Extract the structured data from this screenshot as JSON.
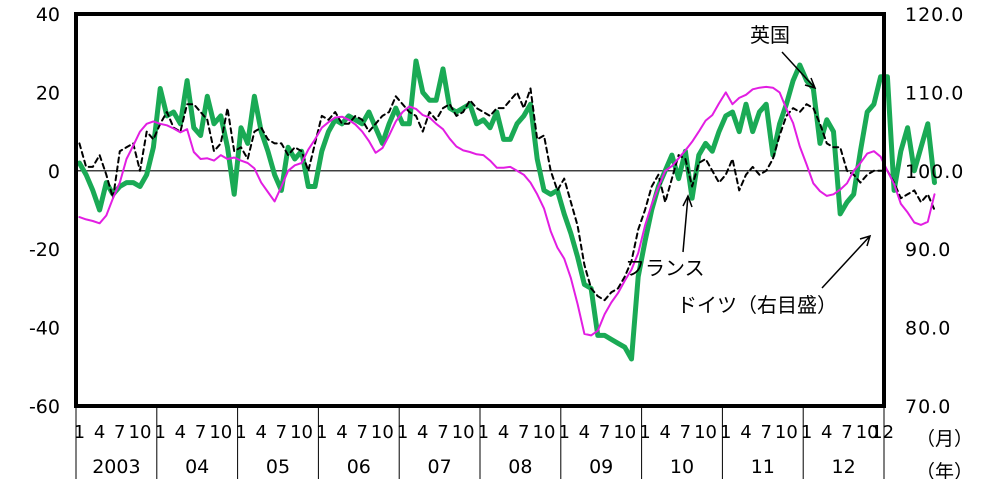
{
  "chart_data": {
    "type": "line",
    "left_axis": {
      "ticks": [
        "40",
        "20",
        "0",
        "-20",
        "-40",
        "-60"
      ],
      "ylim": [
        -60,
        40
      ]
    },
    "right_axis": {
      "ticks": [
        "120.0",
        "110.0",
        "100.0",
        "90.0",
        "80.0",
        "70.0"
      ],
      "ylim": [
        70,
        120
      ]
    },
    "x_axis": {
      "years": [
        "2003",
        "04",
        "05",
        "06",
        "07",
        "08",
        "09",
        "10",
        "11",
        "12"
      ],
      "month_labels": [
        "1",
        "4",
        "7",
        "10"
      ],
      "last_tick_label": "12",
      "month_unit_label": "（月）",
      "year_unit_label": "（年）"
    },
    "series": [
      {
        "name": "英国",
        "axis": "left",
        "color": "#1aaa55",
        "values": [
          2,
          -1,
          -5,
          -10,
          -3,
          -6,
          -4,
          -3,
          -3,
          -4,
          -1,
          6,
          21,
          14,
          15,
          12,
          23,
          11,
          9,
          19,
          12,
          14,
          6,
          -6,
          11,
          7,
          19,
          10,
          5,
          -1,
          -5,
          6,
          3,
          5,
          -4,
          -4,
          5,
          10,
          13,
          12,
          14,
          13,
          12,
          15,
          11,
          7,
          12,
          16,
          12,
          12,
          28,
          20,
          18,
          18,
          26,
          16,
          15,
          16,
          17,
          12,
          13,
          11,
          15,
          8,
          8,
          12,
          14,
          17,
          3,
          -5,
          -6,
          -5,
          -11,
          -16,
          -22,
          -29,
          -30,
          -42,
          -42,
          -43,
          -44,
          -45,
          -48,
          -27,
          -18,
          -10,
          -4,
          0,
          4,
          -2,
          5,
          -7,
          4,
          7,
          5,
          10,
          14,
          15,
          10,
          17,
          10,
          15,
          17,
          4,
          12,
          17,
          23,
          27,
          23,
          21,
          7,
          13,
          10,
          -11,
          -8,
          -6,
          5,
          15,
          17,
          24,
          24,
          -5,
          5,
          11,
          0,
          6,
          12,
          -3
        ]
      },
      {
        "name": "フランス",
        "axis": "left",
        "color": "#000000",
        "values": [
          7,
          1,
          1,
          4,
          -1,
          -7,
          5,
          6,
          7,
          0,
          10,
          8,
          12,
          15,
          11,
          10,
          17,
          17,
          15,
          13,
          5,
          7,
          16,
          5,
          6,
          3,
          10,
          11,
          8,
          7,
          7,
          4,
          6,
          5,
          0,
          7,
          14,
          13,
          15,
          12,
          12,
          14,
          13,
          10,
          12,
          14,
          15,
          19,
          17,
          15,
          14,
          10,
          15,
          13,
          16,
          17,
          14,
          15,
          18,
          16,
          15,
          14,
          16,
          16,
          18,
          20,
          16,
          21,
          8,
          9,
          0,
          -5,
          -2,
          -8,
          -14,
          -24,
          -30,
          -32,
          -33,
          -31,
          -30,
          -27,
          -23,
          -15,
          -10,
          -4,
          -1,
          -8,
          -2,
          4,
          3,
          -4,
          2,
          3,
          0,
          -3,
          -1,
          3,
          -5,
          -1,
          1,
          -1,
          0,
          3,
          9,
          14,
          16,
          15,
          17,
          16,
          12,
          7,
          6,
          6,
          0,
          -1,
          -3,
          -1,
          0,
          0,
          0,
          -3,
          -7,
          -6,
          -5,
          -8,
          -6,
          -10
        ]
      },
      {
        "name": "ドイツ（右目盛）",
        "axis": "right",
        "color": "#e21ee2",
        "values": [
          94.1,
          93.8,
          93.6,
          93.3,
          94.3,
          96.5,
          98.5,
          101.5,
          103.2,
          105.0,
          106.0,
          106.3,
          106.0,
          105.8,
          105.4,
          104.9,
          105.3,
          102.4,
          101.5,
          101.6,
          101.3,
          102.0,
          101.5,
          101.7,
          101.3,
          101.0,
          100.3,
          98.5,
          97.3,
          96.1,
          98.0,
          100.0,
          100.7,
          101.0,
          102.7,
          104.0,
          105.5,
          106.2,
          106.8,
          106.9,
          106.5,
          105.9,
          105.0,
          103.8,
          102.3,
          102.9,
          104.5,
          106.3,
          107.5,
          108.2,
          107.9,
          107.1,
          106.8,
          106.0,
          105.3,
          104.1,
          103.1,
          102.6,
          102.4,
          102.1,
          102.0,
          101.3,
          100.4,
          100.4,
          100.5,
          100.0,
          99.5,
          98.5,
          97.0,
          95.2,
          92.3,
          90.2,
          88.8,
          86.3,
          83.0,
          79.2,
          79.0,
          79.6,
          81.7,
          83.2,
          84.4,
          86.0,
          87.4,
          89.5,
          93.0,
          95.7,
          97.9,
          100.0,
          100.6,
          101.6,
          102.6,
          103.7,
          105.0,
          106.4,
          107.1,
          108.6,
          110.0,
          108.5,
          109.3,
          109.7,
          110.4,
          110.6,
          110.7,
          110.6,
          110.0,
          107.9,
          106.1,
          103.1,
          100.8,
          98.4,
          97.4,
          96.8,
          97.0,
          97.6,
          98.4,
          100.0,
          101.0,
          102.2,
          102.5,
          101.8,
          100.0,
          98.3,
          95.8,
          94.7,
          93.4,
          93.1,
          93.5,
          97.0
        ]
      }
    ],
    "annotations": [
      "英国",
      "フランス",
      "ドイツ（右目盛）"
    ]
  }
}
